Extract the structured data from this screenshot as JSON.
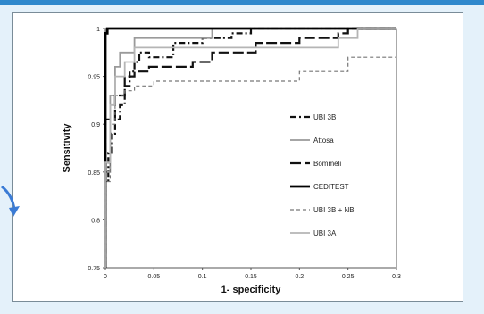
{
  "colors": {
    "slide_background": "#e4f1fa",
    "top_bar": "#2f88cc",
    "arrow": "#3a7bd5",
    "chart_border": "#7a8c98"
  },
  "decorations": {
    "left_arrow_icon": "arrow-icon"
  },
  "chart_data": {
    "type": "line",
    "title": "",
    "xlabel": "1- specificity",
    "ylabel": "Sensitivity",
    "xlim": [
      0,
      0.3
    ],
    "ylim": [
      0.75,
      1.0
    ],
    "xticks": [
      0,
      0.05,
      0.1,
      0.15,
      0.2,
      0.25,
      0.3
    ],
    "xtick_labels": [
      "0",
      "0.05",
      "0.1",
      "0.15",
      "0.2",
      "0.25",
      "0.3"
    ],
    "yticks": [
      0.75,
      0.8,
      0.85,
      0.9,
      0.95,
      1.0
    ],
    "ytick_labels": [
      "0.75",
      "0.8",
      "0.85",
      "0.9",
      "0.95",
      "1"
    ],
    "grid": false,
    "legend_position": "right",
    "series": [
      {
        "name": "UBI 3B",
        "style": "dashdot",
        "color": "#111111",
        "stroke_width": 2.2,
        "points": [
          [
            0,
            0.75
          ],
          [
            0,
            0.84
          ],
          [
            0.003,
            0.84
          ],
          [
            0.003,
            0.87
          ],
          [
            0.006,
            0.87
          ],
          [
            0.006,
            0.89
          ],
          [
            0.01,
            0.89
          ],
          [
            0.01,
            0.905
          ],
          [
            0.015,
            0.905
          ],
          [
            0.015,
            0.92
          ],
          [
            0.02,
            0.92
          ],
          [
            0.02,
            0.94
          ],
          [
            0.025,
            0.94
          ],
          [
            0.025,
            0.955
          ],
          [
            0.03,
            0.955
          ],
          [
            0.03,
            0.965
          ],
          [
            0.035,
            0.965
          ],
          [
            0.035,
            0.975
          ],
          [
            0.045,
            0.975
          ],
          [
            0.045,
            0.97
          ],
          [
            0.07,
            0.97
          ],
          [
            0.07,
            0.985
          ],
          [
            0.1,
            0.985
          ],
          [
            0.1,
            0.99
          ],
          [
            0.13,
            0.99
          ],
          [
            0.13,
            0.995
          ],
          [
            0.15,
            0.995
          ],
          [
            0.15,
            1.0
          ],
          [
            0.3,
            1.0
          ]
        ]
      },
      {
        "name": "Attosa",
        "style": "solid",
        "color": "#9a9a9a",
        "stroke_width": 1.8,
        "points": [
          [
            0,
            0.75
          ],
          [
            0,
            0.85
          ],
          [
            0.005,
            0.85
          ],
          [
            0.005,
            0.93
          ],
          [
            0.01,
            0.93
          ],
          [
            0.01,
            0.96
          ],
          [
            0.015,
            0.96
          ],
          [
            0.015,
            0.975
          ],
          [
            0.03,
            0.975
          ],
          [
            0.03,
            0.99
          ],
          [
            0.11,
            0.99
          ],
          [
            0.11,
            1.0
          ],
          [
            0.3,
            1.0
          ]
        ]
      },
      {
        "name": "Bommeli",
        "style": "longdash",
        "color": "#111111",
        "stroke_width": 2.2,
        "points": [
          [
            0,
            0.75
          ],
          [
            0,
            0.905
          ],
          [
            0.01,
            0.905
          ],
          [
            0.01,
            0.93
          ],
          [
            0.02,
            0.93
          ],
          [
            0.02,
            0.95
          ],
          [
            0.03,
            0.95
          ],
          [
            0.03,
            0.955
          ],
          [
            0.045,
            0.955
          ],
          [
            0.045,
            0.96
          ],
          [
            0.09,
            0.96
          ],
          [
            0.09,
            0.965
          ],
          [
            0.11,
            0.965
          ],
          [
            0.11,
            0.975
          ],
          [
            0.155,
            0.975
          ],
          [
            0.155,
            0.985
          ],
          [
            0.2,
            0.985
          ],
          [
            0.2,
            0.99
          ],
          [
            0.24,
            0.99
          ],
          [
            0.24,
            0.995
          ],
          [
            0.25,
            0.995
          ],
          [
            0.25,
            1.0
          ],
          [
            0.3,
            1.0
          ]
        ]
      },
      {
        "name": "CEDITEST",
        "style": "solid",
        "color": "#000000",
        "stroke_width": 2.8,
        "points": [
          [
            0,
            0.75
          ],
          [
            0,
            0.995
          ],
          [
            0.002,
            0.995
          ],
          [
            0.002,
            1.0
          ],
          [
            0.3,
            1.0
          ]
        ]
      },
      {
        "name": "UBI 3B + NB",
        "style": "dashed",
        "color": "#777777",
        "stroke_width": 1.2,
        "points": [
          [
            0,
            0.75
          ],
          [
            0,
            0.84
          ],
          [
            0.005,
            0.84
          ],
          [
            0.005,
            0.9
          ],
          [
            0.01,
            0.9
          ],
          [
            0.01,
            0.93
          ],
          [
            0.02,
            0.93
          ],
          [
            0.02,
            0.935
          ],
          [
            0.03,
            0.935
          ],
          [
            0.03,
            0.94
          ],
          [
            0.05,
            0.94
          ],
          [
            0.05,
            0.945
          ],
          [
            0.2,
            0.945
          ],
          [
            0.2,
            0.955
          ],
          [
            0.25,
            0.955
          ],
          [
            0.25,
            0.97
          ],
          [
            0.3,
            0.97
          ]
        ]
      },
      {
        "name": "UBI 3A",
        "style": "solid",
        "color": "#b5b5b5",
        "stroke_width": 1.8,
        "points": [
          [
            0,
            0.75
          ],
          [
            0,
            0.86
          ],
          [
            0.005,
            0.86
          ],
          [
            0.005,
            0.92
          ],
          [
            0.01,
            0.92
          ],
          [
            0.01,
            0.95
          ],
          [
            0.02,
            0.95
          ],
          [
            0.02,
            0.965
          ],
          [
            0.03,
            0.965
          ],
          [
            0.03,
            0.98
          ],
          [
            0.24,
            0.98
          ],
          [
            0.24,
            0.99
          ],
          [
            0.26,
            0.99
          ],
          [
            0.26,
            1.0
          ],
          [
            0.3,
            1.0
          ]
        ]
      }
    ]
  }
}
